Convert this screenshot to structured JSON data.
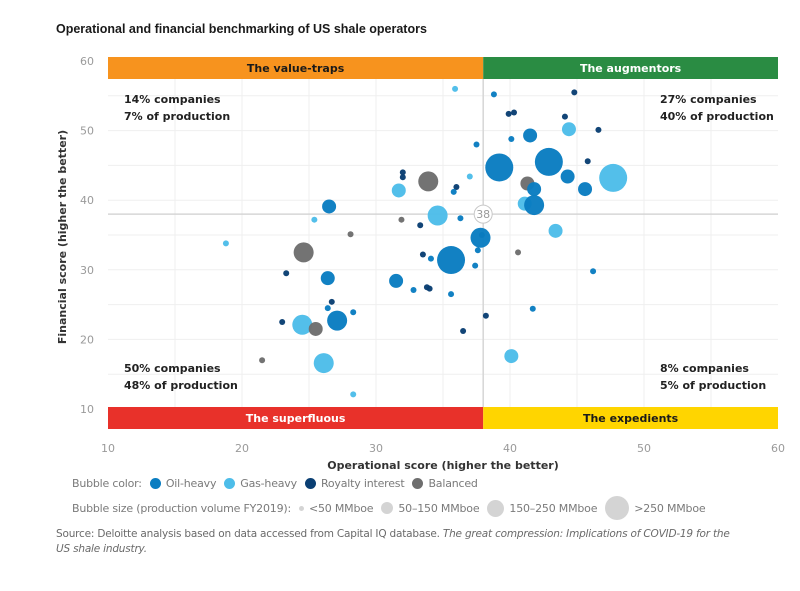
{
  "chart_data": {
    "type": "scatter",
    "title": "Operational and financial benchmarking of US shale operators",
    "xlabel": "Operational score (higher the better)",
    "ylabel": "Financial score (higher the better)",
    "xlim": [
      10,
      60
    ],
    "ylim": [
      10,
      60
    ],
    "xticks": [
      10,
      20,
      30,
      40,
      50,
      60
    ],
    "yticks": [
      10,
      20,
      30,
      40,
      50,
      60
    ],
    "grid": true,
    "threshold": {
      "x": 38,
      "y": 38,
      "label": "38"
    },
    "quadrants": [
      {
        "name": "The value-traps",
        "position": "top-left",
        "color": "#f7931e",
        "text_color": "#1a1a1a",
        "companies": "14% companies",
        "production": "7% of production"
      },
      {
        "name": "The augmentors",
        "position": "top-right",
        "color": "#2a8c43",
        "text_color": "#ffffff",
        "companies": "27% companies",
        "production": "40% of production"
      },
      {
        "name": "The superfluous",
        "position": "bottom-left",
        "color": "#e8312a",
        "text_color": "#ffffff",
        "companies": "50% companies",
        "production": "48% of production"
      },
      {
        "name": "The expedients",
        "position": "bottom-right",
        "color": "#ffd500",
        "text_color": "#1a1a1a",
        "companies": "8% companies",
        "production": "5% of production"
      }
    ],
    "categories": {
      "oil": {
        "label": "Oil-heavy",
        "color": "#0a7dc1"
      },
      "gas": {
        "label": "Gas-heavy",
        "color": "#4dbde9"
      },
      "royalty": {
        "label": "Royalty interest",
        "color": "#0a3f73"
      },
      "balanced": {
        "label": "Balanced",
        "color": "#6e6e6e"
      }
    },
    "size_classes": [
      "<50 MMboe",
      "50–150 MMboe",
      "150–250 MMboe",
      ">250 MMboe"
    ],
    "points": [
      {
        "x": 35.9,
        "y": 56.0,
        "type": "gas",
        "size": 0
      },
      {
        "x": 38.8,
        "y": 55.2,
        "type": "oil",
        "size": 0
      },
      {
        "x": 44.8,
        "y": 55.5,
        "type": "royalty",
        "size": 0
      },
      {
        "x": 39.9,
        "y": 52.4,
        "type": "royalty",
        "size": 0
      },
      {
        "x": 40.3,
        "y": 52.6,
        "type": "royalty",
        "size": 0
      },
      {
        "x": 44.1,
        "y": 52.0,
        "type": "royalty",
        "size": 0
      },
      {
        "x": 44.4,
        "y": 50.2,
        "type": "gas",
        "size": 1
      },
      {
        "x": 46.6,
        "y": 50.1,
        "type": "royalty",
        "size": 0
      },
      {
        "x": 41.5,
        "y": 49.3,
        "type": "oil",
        "size": 1
      },
      {
        "x": 40.1,
        "y": 48.8,
        "type": "oil",
        "size": 0
      },
      {
        "x": 37.5,
        "y": 48.0,
        "type": "oil",
        "size": 0
      },
      {
        "x": 39.2,
        "y": 44.7,
        "type": "oil",
        "size": 3
      },
      {
        "x": 42.9,
        "y": 45.5,
        "type": "oil",
        "size": 3
      },
      {
        "x": 45.8,
        "y": 45.6,
        "type": "royalty",
        "size": 0
      },
      {
        "x": 47.7,
        "y": 43.2,
        "type": "gas",
        "size": 3
      },
      {
        "x": 44.3,
        "y": 43.4,
        "type": "oil",
        "size": 1
      },
      {
        "x": 45.6,
        "y": 41.6,
        "type": "oil",
        "size": 1
      },
      {
        "x": 41.3,
        "y": 42.4,
        "type": "balanced",
        "size": 1
      },
      {
        "x": 41.8,
        "y": 41.6,
        "type": "oil",
        "size": 1
      },
      {
        "x": 41.1,
        "y": 39.5,
        "type": "gas",
        "size": 1
      },
      {
        "x": 41.8,
        "y": 39.3,
        "type": "oil",
        "size": 2
      },
      {
        "x": 32.0,
        "y": 44.0,
        "type": "royalty",
        "size": 0
      },
      {
        "x": 32.0,
        "y": 43.3,
        "type": "royalty",
        "size": 0
      },
      {
        "x": 33.9,
        "y": 42.7,
        "type": "balanced",
        "size": 2
      },
      {
        "x": 31.7,
        "y": 41.4,
        "type": "gas",
        "size": 1
      },
      {
        "x": 36.0,
        "y": 41.9,
        "type": "royalty",
        "size": 0
      },
      {
        "x": 35.8,
        "y": 41.2,
        "type": "oil",
        "size": 0
      },
      {
        "x": 37.0,
        "y": 43.4,
        "type": "gas",
        "size": 0
      },
      {
        "x": 26.5,
        "y": 39.1,
        "type": "oil",
        "size": 1
      },
      {
        "x": 25.4,
        "y": 37.2,
        "type": "gas",
        "size": 0
      },
      {
        "x": 28.1,
        "y": 35.1,
        "type": "balanced",
        "size": 0
      },
      {
        "x": 31.9,
        "y": 37.2,
        "type": "balanced",
        "size": 0
      },
      {
        "x": 34.6,
        "y": 37.8,
        "type": "gas",
        "size": 2
      },
      {
        "x": 36.3,
        "y": 37.4,
        "type": "oil",
        "size": 0
      },
      {
        "x": 33.3,
        "y": 36.4,
        "type": "royalty",
        "size": 0
      },
      {
        "x": 37.9,
        "y": 35.0,
        "type": "royalty",
        "size": 0
      },
      {
        "x": 37.8,
        "y": 34.6,
        "type": "oil",
        "size": 2
      },
      {
        "x": 37.6,
        "y": 32.8,
        "type": "oil",
        "size": 0
      },
      {
        "x": 35.6,
        "y": 31.4,
        "type": "oil",
        "size": 3
      },
      {
        "x": 34.1,
        "y": 31.6,
        "type": "oil",
        "size": 0
      },
      {
        "x": 33.5,
        "y": 32.2,
        "type": "royalty",
        "size": 0
      },
      {
        "x": 37.4,
        "y": 30.6,
        "type": "oil",
        "size": 0
      },
      {
        "x": 40.6,
        "y": 32.5,
        "type": "balanced",
        "size": 0
      },
      {
        "x": 43.4,
        "y": 35.6,
        "type": "gas",
        "size": 1
      },
      {
        "x": 46.2,
        "y": 29.8,
        "type": "oil",
        "size": 0
      },
      {
        "x": 18.8,
        "y": 33.8,
        "type": "gas",
        "size": 0
      },
      {
        "x": 24.6,
        "y": 32.5,
        "type": "balanced",
        "size": 2
      },
      {
        "x": 23.3,
        "y": 29.5,
        "type": "royalty",
        "size": 0
      },
      {
        "x": 26.4,
        "y": 28.8,
        "type": "oil",
        "size": 1
      },
      {
        "x": 31.5,
        "y": 28.4,
        "type": "oil",
        "size": 1
      },
      {
        "x": 33.8,
        "y": 27.5,
        "type": "royalty",
        "size": 0
      },
      {
        "x": 34.0,
        "y": 27.3,
        "type": "royalty",
        "size": 0
      },
      {
        "x": 32.8,
        "y": 27.1,
        "type": "oil",
        "size": 0
      },
      {
        "x": 35.6,
        "y": 26.5,
        "type": "oil",
        "size": 0
      },
      {
        "x": 26.7,
        "y": 25.4,
        "type": "royalty",
        "size": 0
      },
      {
        "x": 26.4,
        "y": 24.5,
        "type": "oil",
        "size": 0
      },
      {
        "x": 28.3,
        "y": 23.9,
        "type": "oil",
        "size": 0
      },
      {
        "x": 27.1,
        "y": 22.7,
        "type": "oil",
        "size": 2
      },
      {
        "x": 23.0,
        "y": 22.5,
        "type": "royalty",
        "size": 0
      },
      {
        "x": 24.5,
        "y": 22.1,
        "type": "gas",
        "size": 2
      },
      {
        "x": 25.5,
        "y": 21.5,
        "type": "balanced",
        "size": 1
      },
      {
        "x": 38.2,
        "y": 23.4,
        "type": "royalty",
        "size": 0
      },
      {
        "x": 36.5,
        "y": 21.2,
        "type": "royalty",
        "size": 0
      },
      {
        "x": 41.7,
        "y": 24.4,
        "type": "oil",
        "size": 0
      },
      {
        "x": 21.5,
        "y": 17.0,
        "type": "balanced",
        "size": 0
      },
      {
        "x": 26.1,
        "y": 16.6,
        "type": "gas",
        "size": 2
      },
      {
        "x": 28.3,
        "y": 12.1,
        "type": "gas",
        "size": 0
      },
      {
        "x": 40.1,
        "y": 17.6,
        "type": "gas",
        "size": 1
      }
    ]
  },
  "legend": {
    "color_label": "Bubble color:",
    "size_label": "Bubble size (production volume FY2019):"
  },
  "source": {
    "text": "Source: Deloitte analysis based on data accessed from Capital IQ database. ",
    "italic": "The great compression: Implications of COVID-19 for the US shale industry."
  }
}
